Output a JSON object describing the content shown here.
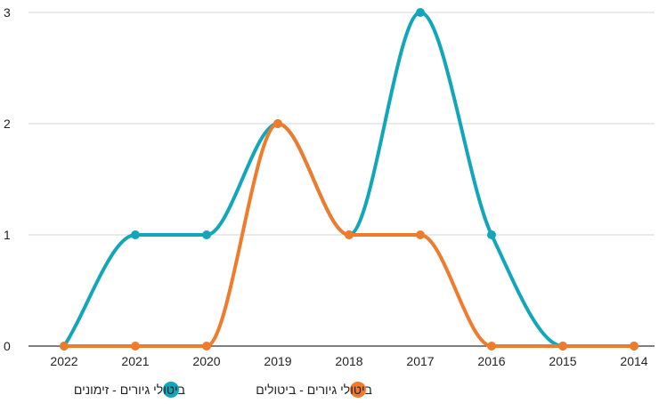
{
  "chart_data": {
    "type": "line",
    "smooth": true,
    "categories": [
      "2022",
      "2021",
      "2020",
      "2019",
      "2018",
      "2017",
      "2016",
      "2015",
      "2014"
    ],
    "series": [
      {
        "name": "ביטולי גיורים - זימונים",
        "color": "#12a6bb",
        "values": [
          0,
          1,
          1,
          2,
          1,
          3,
          1,
          0,
          0
        ]
      },
      {
        "name": "ביטולי גיורים - ביטולים",
        "color": "#f07b2a",
        "values": [
          0,
          0,
          0,
          2,
          1,
          1,
          0,
          0,
          0
        ]
      }
    ],
    "ylim": [
      0,
      3
    ],
    "yticks": [
      0,
      1,
      2,
      3
    ],
    "grid": true,
    "legend_position": "bottom"
  }
}
